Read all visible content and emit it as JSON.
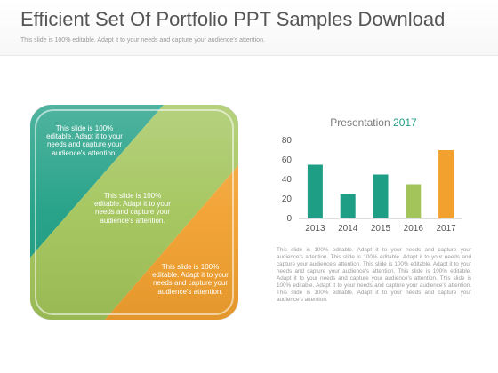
{
  "header": {
    "title": "Efficient Set Of Portfolio PPT Samples Download",
    "subtitle": "This slide is 100% editable. Adapt it to your needs and capture your audience's attention."
  },
  "tile": {
    "colors": {
      "teal": "#1e9e84",
      "green": "#a2c45a",
      "orange": "#f2a02e"
    },
    "text_top": "This slide is 100% editable. Adapt it to your needs and capture your audience's attention.",
    "text_middle": "This slide is 100% editable. Adapt it to your needs and capture your audience's attention.",
    "text_bottom": "This slide is 100% editable. Adapt it to your needs and capture your audience's attention."
  },
  "chart_data": {
    "type": "bar",
    "title": "Presentation",
    "title_year": "2017",
    "categories": [
      "2013",
      "2014",
      "2015",
      "2016",
      "2017"
    ],
    "values": [
      55,
      25,
      45,
      35,
      70
    ],
    "colors": [
      "#1e9e84",
      "#1e9e84",
      "#1e9e84",
      "#a2c45a",
      "#f2a02e"
    ],
    "ylim": [
      0,
      80
    ],
    "yticks": [
      0,
      20,
      40,
      60,
      80
    ],
    "xlabel": "",
    "ylabel": "",
    "grid": false
  },
  "description": "This slide is 100% editable. Adapt it to your needs and capture your audience's attention. This slide is 100% editable. Adapt it to your needs and capture your audience's attention. This slide is 100% editable. Adapt it to your needs and capture your audience's attention. This slide is 100% editable. Adapt it to your needs and capture your audience's attention. This slide is 100% editable. Adapt it to your needs and capture your audience's attention. This slide is 100% editable. Adapt it to your needs and capture your audience's attention."
}
